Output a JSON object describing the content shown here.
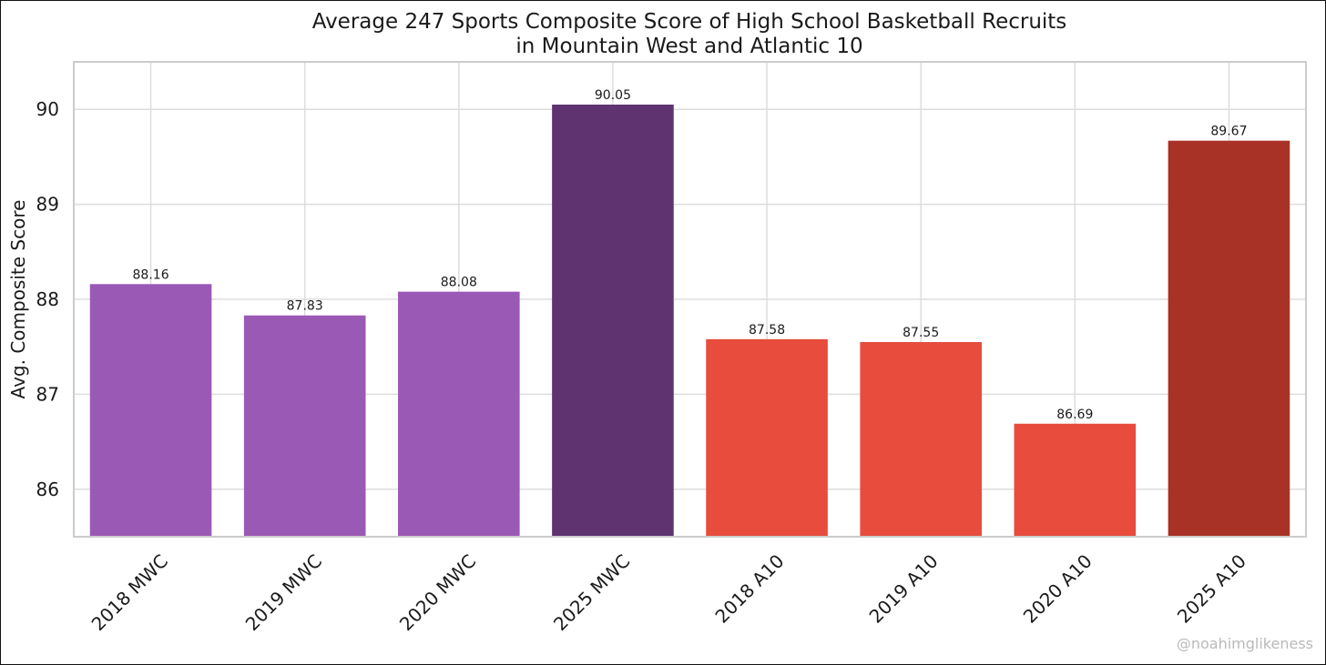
{
  "chart_data": {
    "type": "bar",
    "title": "Average 247 Sports Composite Score of High School Basketball Recruits",
    "subtitle": "in Mountain West and Atlantic 10",
    "xlabel": "",
    "ylabel": "Avg. Composite Score",
    "ylim": [
      85.5,
      90.5
    ],
    "yticks": [
      86,
      87,
      88,
      89,
      90
    ],
    "grid": true,
    "categories": [
      "2018 MWC",
      "2019 MWC",
      "2020 MWC",
      "2025 MWC",
      "2018 A10",
      "2019 A10",
      "2020 A10",
      "2025 A10"
    ],
    "values": [
      88.16,
      87.83,
      88.08,
      90.05,
      87.58,
      87.55,
      86.69,
      89.67
    ],
    "value_labels": [
      "88.16",
      "87.83",
      "88.08",
      "90.05",
      "87.58",
      "87.55",
      "86.69",
      "89.67"
    ],
    "colors": [
      "#9b59b6",
      "#9b59b6",
      "#9b59b6",
      "#5e3370",
      "#e74c3c",
      "#e74c3c",
      "#e74c3c",
      "#a93226"
    ]
  },
  "watermark": "@noahimglikeness"
}
